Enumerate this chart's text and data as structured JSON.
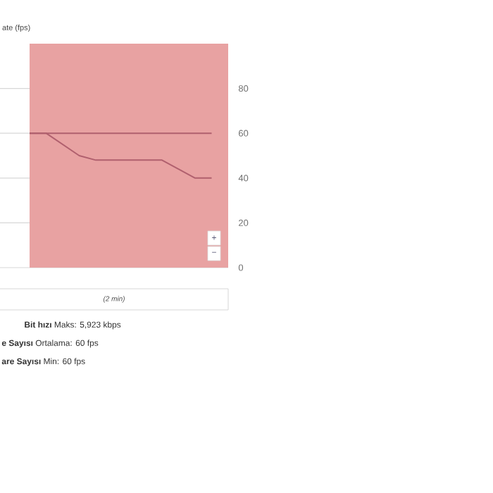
{
  "chart_data": {
    "type": "line",
    "ylabel": "ate (fps)",
    "categories": [
      null,
      null,
      null,
      null,
      null,
      null,
      null,
      null,
      null,
      null,
      null,
      null,
      null
    ],
    "ylim": [
      0,
      100
    ],
    "yticks": [
      0,
      20,
      40,
      60,
      80
    ],
    "tick_labels": "y",
    "grid": "y",
    "marker": "none",
    "line_style": "solid",
    "series": [
      {
        "color": "#b0606e",
        "values": [
          60,
          60,
          60,
          60,
          60,
          60,
          60,
          60,
          60,
          60,
          60,
          60,
          null
        ]
      },
      {
        "color": "#b0606e",
        "values": [
          60,
          60,
          55,
          50,
          48,
          48,
          48,
          48,
          48,
          44,
          40,
          40,
          null
        ]
      }
    ],
    "annotations": [
      "+",
      "−",
      "(2 min)",
      "**Bit hızı** Maks: 5,923 kbps",
      "**e Sayısı** Ortalama: 60 fps",
      "**are Sayısı** Min: 60 fps"
    ]
  }
}
